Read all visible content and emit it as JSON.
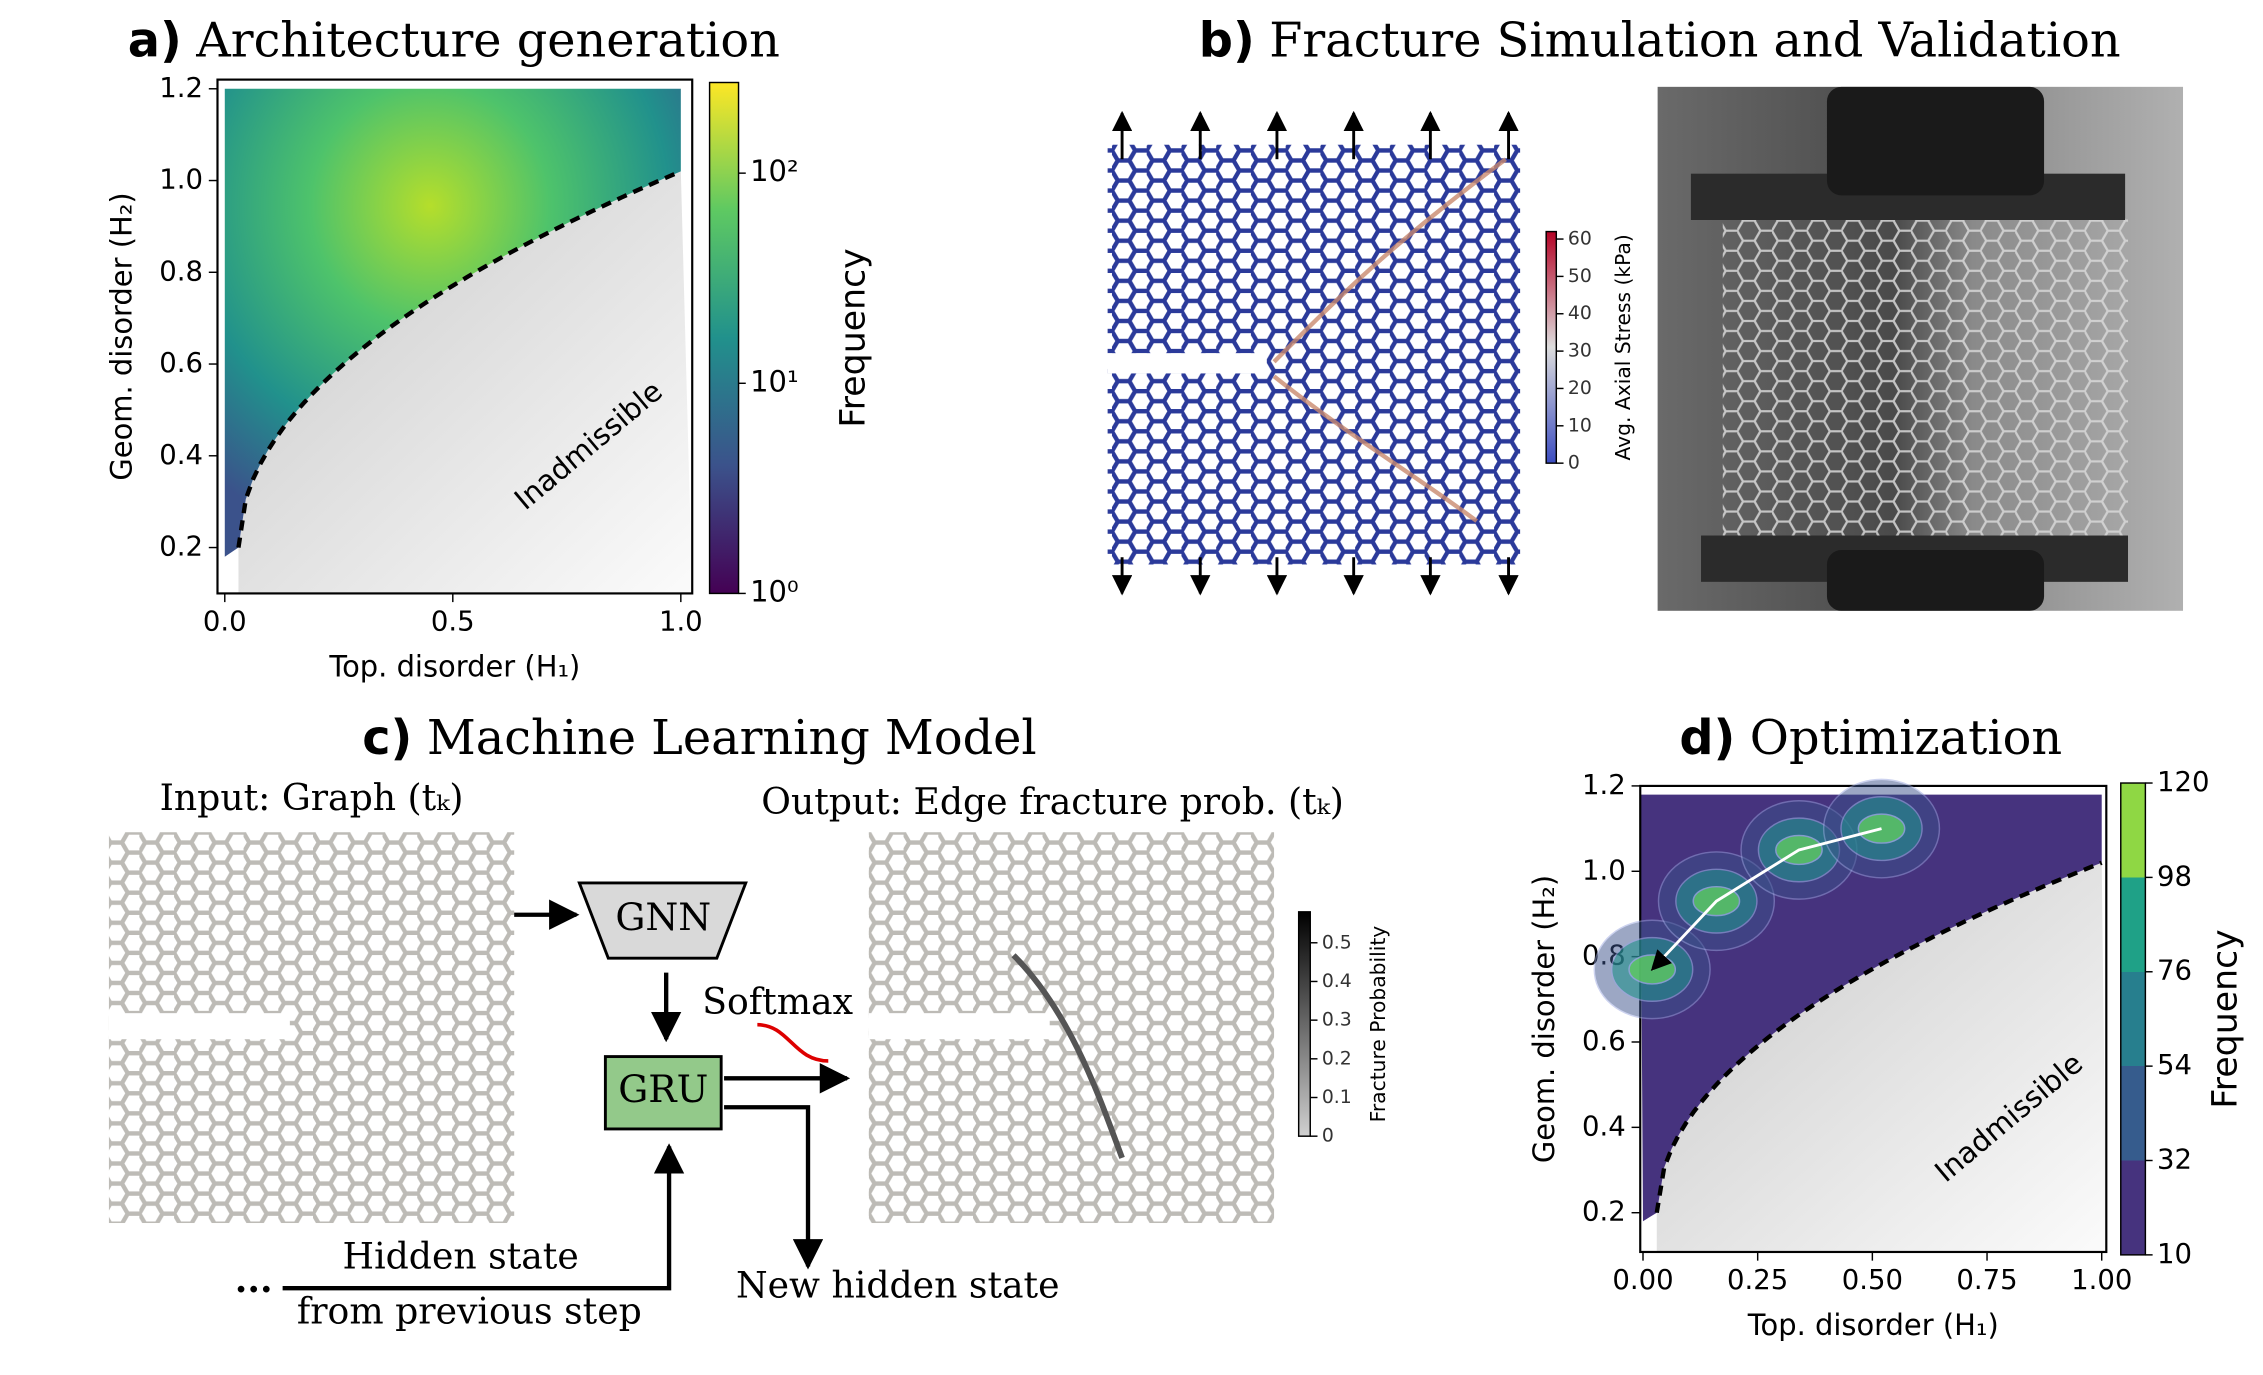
{
  "panel_a": {
    "label": "a)",
    "title": "Architecture generation",
    "x_label": "Top. disorder (H₁)",
    "y_label": "Geom. disorder (H₂)",
    "xlim": [
      -0.016,
      1.025
    ],
    "ylim": [
      0.1,
      1.22
    ],
    "xticks": [
      {
        "value": 0,
        "label": "0.0"
      },
      0.5,
      {
        "value": 1,
        "label": "1.0"
      }
    ],
    "yticks": [
      0.2,
      0.4,
      0.6,
      0.8,
      {
        "value": 1,
        "label": "1.0"
      },
      1.2
    ],
    "region_label": "Inadmissible",
    "colorbar": {
      "label": "Frequency",
      "scale": "log",
      "lim": [
        1,
        270
      ],
      "ticks": [
        {
          "value": 1,
          "label": "10⁰"
        },
        {
          "value": 10,
          "label": "10¹"
        },
        {
          "value": 100,
          "label": "10²"
        }
      ]
    }
  },
  "panel_b": {
    "label": "b)",
    "title": "Fracture Simulation and Validation",
    "colorbar": {
      "label": "Avg. Axial Stress (kPa)",
      "scale": "linear",
      "lim": [
        0,
        62
      ],
      "ticks": [
        0,
        10,
        20,
        30,
        40,
        50,
        60
      ]
    }
  },
  "panel_c": {
    "label": "c)",
    "title": "Machine Learning Model",
    "input_label": "Input: Graph (tₖ)",
    "output_label": "Output: Edge fracture prob. (tₖ)",
    "gnn": "GNN",
    "gru": "GRU",
    "softmax": "Softmax",
    "hidden_in": [
      "Hidden state",
      "from previous step"
    ],
    "ellipsis": "...",
    "hidden_out": "New hidden state",
    "colorbar": {
      "label": "Fracture Probability",
      "scale": "linear",
      "lim": [
        0,
        0.58
      ],
      "ticks": [
        0,
        0.1,
        0.2,
        0.3,
        0.4,
        0.5
      ]
    }
  },
  "panel_d": {
    "label": "d)",
    "title": "Optimization",
    "x_label": "Top. disorder (H₁)",
    "y_label": "Geom. disorder (H₂)",
    "xlim": [
      -0.006,
      1.01
    ],
    "ylim": [
      0.108,
      1.2
    ],
    "xticks": [
      {
        "value": 0,
        "label": "0.00"
      },
      0.25,
      {
        "value": 0.5,
        "label": "0.50"
      },
      0.75,
      {
        "value": 1,
        "label": "1.00"
      }
    ],
    "yticks": [
      0.2,
      0.4,
      0.6,
      0.8,
      {
        "value": 1,
        "label": "1.0"
      },
      1.2
    ],
    "region_label": "Inadmissible",
    "colorbar": {
      "label": "Frequency",
      "scale": "linear",
      "lim": [
        10,
        120
      ],
      "ticks": [
        10,
        32,
        54,
        76,
        98,
        120
      ]
    }
  }
}
